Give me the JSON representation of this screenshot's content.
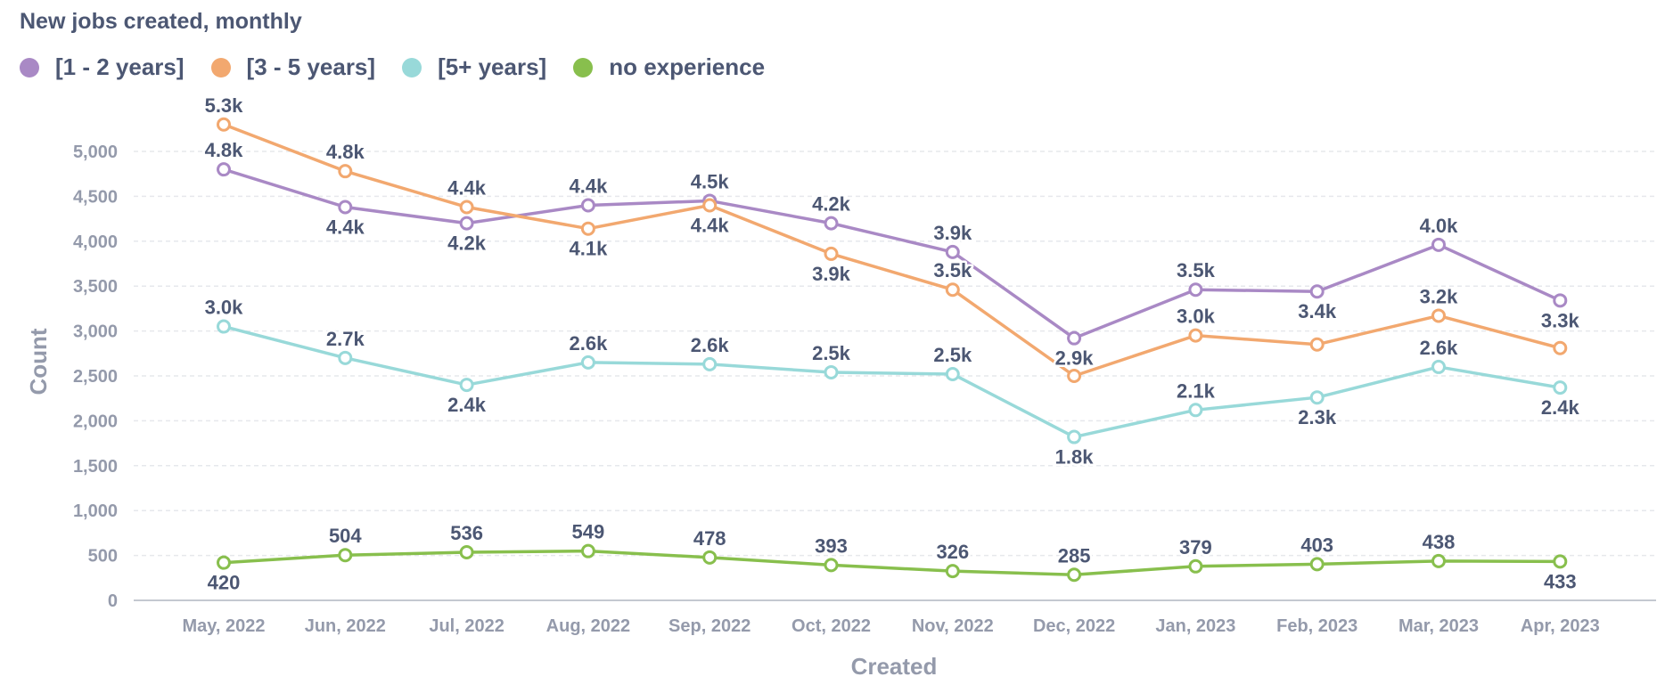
{
  "title": "New jobs created, monthly",
  "colors": {
    "text": "#4c5773",
    "axis": "#949aab",
    "grid": "#e6e8ec",
    "axis_line": "#c4c8d0"
  },
  "chart_data": {
    "type": "line",
    "title": "New jobs created, monthly",
    "xlabel": "Created",
    "ylabel": "Count",
    "ylim": [
      0,
      5000
    ],
    "yticks": [
      0,
      500,
      1000,
      1500,
      2000,
      2500,
      3000,
      3500,
      4000,
      4500,
      5000
    ],
    "ytick_labels": [
      "0",
      "500",
      "1,000",
      "1,500",
      "2,000",
      "2,500",
      "3,000",
      "3,500",
      "4,000",
      "4,500",
      "5,000"
    ],
    "grid": true,
    "legend_position": "top-left",
    "categories": [
      "May, 2022",
      "Jun, 2022",
      "Jul, 2022",
      "Aug, 2022",
      "Sep, 2022",
      "Oct, 2022",
      "Nov, 2022",
      "Dec, 2022",
      "Jan, 2023",
      "Feb, 2023",
      "Mar, 2023",
      "Apr, 2023"
    ],
    "series": [
      {
        "name": "[1 - 2 years]",
        "color": "#a989c5",
        "values": [
          4800,
          4380,
          4200,
          4400,
          4450,
          4200,
          3880,
          2920,
          3460,
          3440,
          3960,
          3340
        ],
        "labels": [
          "4.8k",
          "4.4k",
          "4.2k",
          "4.4k",
          "4.5k",
          "4.2k",
          "3.9k",
          "2.9k",
          "3.5k",
          "3.4k",
          "4.0k",
          "3.3k"
        ],
        "label_pos": [
          "above",
          "below",
          "below",
          "above",
          "above",
          "above",
          "above",
          "below",
          "above",
          "below",
          "above",
          "below"
        ]
      },
      {
        "name": "[3 - 5 years]",
        "color": "#f2a86f",
        "values": [
          5300,
          4780,
          4380,
          4140,
          4400,
          3860,
          3460,
          2500,
          2950,
          2850,
          3170,
          2810
        ],
        "labels": [
          "5.3k",
          "4.8k",
          "4.4k",
          "4.1k",
          "4.4k",
          "3.9k",
          "3.5k",
          "",
          "3.0k",
          "",
          "3.2k",
          ""
        ],
        "label_pos": [
          "above",
          "above",
          "above",
          "below",
          "below",
          "below",
          "above",
          "above",
          "above",
          "above",
          "above",
          "above"
        ]
      },
      {
        "name": "[5+ years]",
        "color": "#98d9d9",
        "values": [
          3050,
          2700,
          2400,
          2650,
          2630,
          2540,
          2520,
          1820,
          2120,
          2260,
          2600,
          2370
        ],
        "labels": [
          "3.0k",
          "2.7k",
          "2.4k",
          "2.6k",
          "2.6k",
          "2.5k",
          "2.5k",
          "1.8k",
          "2.1k",
          "2.3k",
          "2.6k",
          "2.4k"
        ],
        "label_pos": [
          "above",
          "above",
          "below",
          "above",
          "above",
          "above",
          "above",
          "below",
          "above",
          "below",
          "above",
          "below"
        ]
      },
      {
        "name": "no experience",
        "color": "#88bf4d",
        "values": [
          420,
          504,
          536,
          549,
          478,
          393,
          326,
          285,
          379,
          403,
          438,
          433
        ],
        "labels": [
          "420",
          "504",
          "536",
          "549",
          "478",
          "393",
          "326",
          "285",
          "379",
          "403",
          "438",
          "433"
        ],
        "label_pos": [
          "below",
          "above",
          "above",
          "above",
          "above",
          "above",
          "above",
          "above",
          "above",
          "above",
          "above",
          "below"
        ]
      }
    ]
  }
}
